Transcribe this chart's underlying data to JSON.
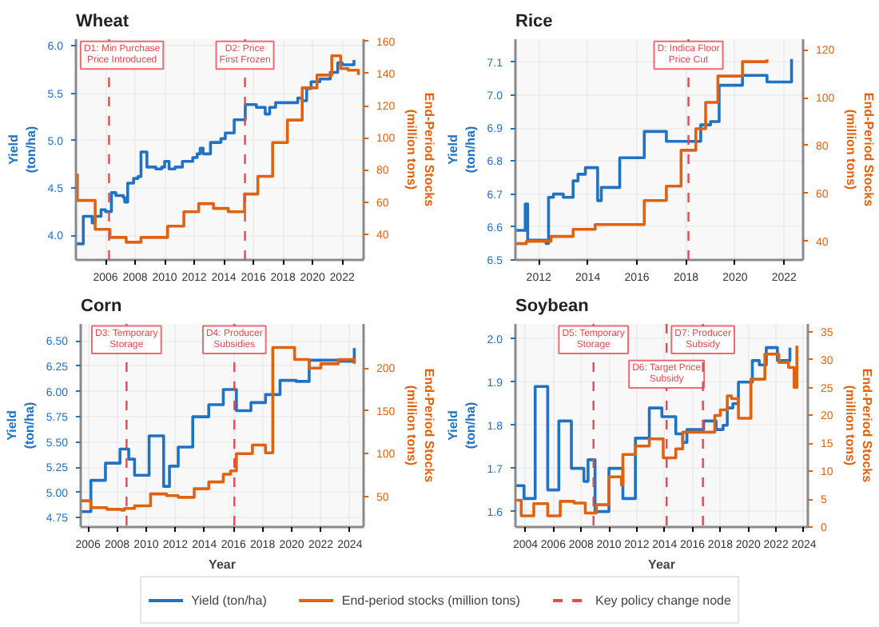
{
  "chart_data": [
    {
      "type": "step",
      "title": "Wheat",
      "ylabel": "Yield\n(ton/ha)",
      "y2label": "End-Period Stocks\n(million tons)",
      "legend": "bottom",
      "annotations": [
        "Key policy change node"
      ],
      "grid": true,
      "xlim": [
        2004.0,
        2023.45
      ],
      "ylim": [
        3.74,
        6.07
      ],
      "y2lim": [
        24,
        161.3
      ],
      "xticks": [
        2006,
        2008,
        2010,
        2012,
        2014,
        2016,
        2018,
        2020,
        2022
      ],
      "yticks": [
        {
          "value": 4,
          "label": "4.0"
        },
        4.5,
        {
          "value": 5,
          "label": "5.0"
        },
        5.5,
        {
          "value": 6,
          "label": "6.0"
        }
      ],
      "y2ticks": [
        40,
        60,
        80,
        100,
        120,
        140,
        160
      ],
      "series": [
        {
          "name": "Yield (ton/ha)",
          "color": "#1f72c4",
          "x": [
            2004.0,
            2004.5,
            2005.1,
            2005.3,
            2005.7,
            2006.0,
            2006.4,
            2006.7,
            2007.2,
            2007.3,
            2007.5,
            2007.9,
            2008.2,
            2008.4,
            2008.8,
            2009.4,
            2009.8,
            2010.0,
            2010.3,
            2010.7,
            2011.2,
            2011.9,
            2012.2,
            2012.4,
            2012.6,
            2013.1,
            2013.8,
            2014.1,
            2014.4,
            2014.7,
            2015.45,
            2016.2,
            2016.8,
            2017.1,
            2017.5,
            2019.0,
            2019.3,
            2019.6,
            2019.9,
            2020.5,
            2021.2,
            2021.7,
            2022.0,
            2022.8
          ],
          "values": [
            3.91,
            4.2,
            4.13,
            4.2,
            4.27,
            4.25,
            4.45,
            4.42,
            4.4,
            4.35,
            4.55,
            4.6,
            4.62,
            4.88,
            4.72,
            4.7,
            4.72,
            4.78,
            4.7,
            4.72,
            4.78,
            4.82,
            4.86,
            4.92,
            4.86,
            4.98,
            5.02,
            5.08,
            5.08,
            5.22,
            5.38,
            5.35,
            5.28,
            5.35,
            5.4,
            5.45,
            5.42,
            5.55,
            5.62,
            5.65,
            5.72,
            5.82,
            5.8,
            5.85
          ]
        },
        {
          "name": "End-period stocks (million tons)",
          "color": "#e0620f",
          "axis": "y2",
          "x": [
            2004.0,
            2004.1,
            2005.3,
            2006.3,
            2007.4,
            2008.4,
            2010.2,
            2011.3,
            2012.3,
            2013.3,
            2014.3,
            2015.4,
            2016.3,
            2017.3,
            2018.3,
            2019.3,
            2020.3,
            2021.3,
            2021.9,
            2022.4,
            2023.1
          ],
          "values": [
            77,
            61,
            43,
            38,
            35,
            38,
            45,
            54,
            59,
            56,
            54,
            65,
            76,
            97,
            111,
            131,
            139,
            151,
            143,
            142,
            139
          ]
        }
      ],
      "ref_lines": [
        {
          "axis": "x",
          "value": 2006.24,
          "label": "D1: Min Purchase\nPrice Introduced",
          "color": "#e8474f",
          "line_style": "dashed"
        },
        {
          "axis": "x",
          "value": 2015.43,
          "label": "D2: Price\nFirst Frozen",
          "color": "#e8474f",
          "line_style": "dashed"
        }
      ]
    },
    {
      "type": "step",
      "title": "Rice",
      "ylabel": "Yield\n(ton/ha)",
      "y2label": "End-Period Stocks\n(million tons)",
      "grid": true,
      "xlim": [
        2011.05,
        2022.77
      ],
      "ylim": [
        6.5,
        7.17
      ],
      "y2lim": [
        32.2,
        124.4
      ],
      "xticks": [
        2012,
        2014,
        2016,
        2018,
        2020,
        2022
      ],
      "yticks": [
        6.5,
        6.6,
        6.7,
        6.8,
        6.9,
        {
          "value": 7,
          "label": "7.0"
        },
        7.1
      ],
      "y2ticks": [
        40,
        60,
        80,
        100,
        120
      ],
      "series": [
        {
          "color": "#1f72c4",
          "x": [
            2011.05,
            2011.45,
            2011.55,
            2012.3,
            2012.4,
            2012.6,
            2013.0,
            2013.4,
            2013.6,
            2013.9,
            2014.4,
            2014.55,
            2015.3,
            2016.3,
            2017.2,
            2018.6,
            2019.0,
            2019.35,
            2020.3,
            2021.3,
            2022.3
          ],
          "values": [
            6.59,
            6.67,
            6.56,
            6.55,
            6.69,
            6.7,
            6.69,
            6.74,
            6.76,
            6.78,
            6.68,
            6.72,
            6.81,
            6.89,
            6.86,
            6.91,
            6.92,
            7.03,
            7.06,
            7.04,
            7.11
          ]
        },
        {
          "color": "#e0620f",
          "axis": "y2",
          "x": [
            2011.05,
            2011.5,
            2012.5,
            2013.4,
            2014.3,
            2016.3,
            2017.2,
            2017.8,
            2018.4,
            2018.8,
            2019.3,
            2020.3,
            2021.3
          ],
          "values": [
            39,
            40,
            42,
            45,
            47,
            57,
            63,
            78,
            87,
            98,
            109,
            115,
            116
          ]
        }
      ],
      "ref_lines": [
        {
          "axis": "x",
          "value": 2018.1,
          "label": "D: Indica Floor\nPrice Cut",
          "color": "#e8474f",
          "line_style": "dashed"
        }
      ]
    },
    {
      "type": "step",
      "title": "Corn",
      "xlabel": "Year",
      "ylabel": "Yield\n(ton/ha)",
      "y2label": "End-Period Stocks\n(million tons)",
      "grid": true,
      "xlim": [
        2005.5,
        2024.94
      ],
      "ylim": [
        4.657,
        6.67
      ],
      "y2lim": [
        14.3,
        251.6
      ],
      "xticks": [
        2006,
        2008,
        2010,
        2012,
        2014,
        2016,
        2018,
        2020,
        2022,
        2024
      ],
      "yticks": [
        4.75,
        {
          "value": 5,
          "label": "5.00"
        },
        5.25,
        {
          "value": 5.5,
          "label": "5.50"
        },
        5.75,
        {
          "value": 6,
          "label": "6.00"
        },
        6.25,
        {
          "value": 6.5,
          "label": "6.50"
        }
      ],
      "y2ticks": [
        50,
        100,
        150,
        200
      ],
      "series": [
        {
          "color": "#1f72c4",
          "x": [
            2005.5,
            2006.2,
            2007.2,
            2008.2,
            2008.8,
            2009.2,
            2010.2,
            2011.2,
            2011.6,
            2012.2,
            2013.2,
            2014.3,
            2015.3,
            2016.2,
            2017.2,
            2018.2,
            2019.2,
            2020.3,
            2021.2,
            2023.2,
            2024.3
          ],
          "values": [
            4.81,
            5.12,
            5.29,
            5.43,
            5.33,
            5.17,
            5.56,
            5.06,
            5.26,
            5.45,
            5.75,
            5.87,
            6.02,
            5.81,
            5.89,
            5.97,
            6.11,
            6.1,
            6.31,
            6.3,
            6.43
          ]
        },
        {
          "color": "#e0620f",
          "axis": "y2",
          "x": [
            2005.5,
            2006.2,
            2007.3,
            2008.3,
            2008.5,
            2009.2,
            2010.3,
            2011.4,
            2012.2,
            2013.3,
            2014.3,
            2015.3,
            2015.8,
            2016.2,
            2017.3,
            2018.2,
            2018.7,
            2020.2,
            2021.2,
            2022.0,
            2023.2,
            2024.3
          ],
          "values": [
            45,
            37,
            35,
            34,
            36,
            39,
            53,
            51,
            49,
            59,
            67,
            76,
            80,
            100,
            110,
            101,
            224,
            210,
            200,
            205,
            210,
            205
          ]
        }
      ],
      "ref_lines": [
        {
          "axis": "x",
          "value": 2008.65,
          "label": "D3: Temporary\nStorage",
          "color": "#e8474f",
          "line_style": "dashed"
        },
        {
          "axis": "x",
          "value": 2016.06,
          "label": "D4: Producer\nSubsidies",
          "color": "#e8474f",
          "line_style": "dashed"
        }
      ]
    },
    {
      "type": "step",
      "title": "Soybean",
      "xlabel": "Year",
      "ylabel": "Yield\n(ton/ha)",
      "y2label": "End-Period Stocks\n(million tons)",
      "grid": true,
      "xlim": [
        2003.28,
        2024.29
      ],
      "ylim": [
        1.564,
        2.035
      ],
      "y2lim": [
        0,
        36.4
      ],
      "xticks": [
        2004,
        2006,
        2008,
        2010,
        2012,
        2014,
        2016,
        2018,
        2020,
        2022,
        2024
      ],
      "yticks": [
        1.6,
        1.7,
        1.8,
        1.9,
        {
          "value": 2,
          "label": "2.0"
        }
      ],
      "y2ticks": [
        0,
        5,
        10,
        15,
        20,
        25,
        30,
        35
      ],
      "series": [
        {
          "color": "#1f72c4",
          "x": [
            2003.28,
            2003.9,
            2004.7,
            2005.6,
            2006.4,
            2007.3,
            2008.2,
            2008.5,
            2009.0,
            2010.0,
            2011.0,
            2011.9,
            2012.9,
            2013.8,
            2014.8,
            2015.3,
            2015.6,
            2016.8,
            2017.7,
            2018.2,
            2018.5,
            2018.9,
            2019.3,
            2020.3,
            2020.8,
            2021.3,
            2022.1,
            2022.6,
            2023.0
          ],
          "values": [
            1.66,
            1.63,
            1.89,
            1.65,
            1.81,
            1.7,
            1.67,
            1.72,
            1.6,
            1.7,
            1.63,
            1.77,
            1.84,
            1.82,
            1.78,
            1.76,
            1.79,
            1.81,
            1.79,
            1.8,
            1.84,
            1.85,
            1.9,
            1.95,
            1.94,
            1.98,
            1.95,
            1.95,
            1.98
          ]
        },
        {
          "color": "#e0620f",
          "axis": "y2",
          "x": [
            2003.28,
            2003.7,
            2004.6,
            2005.6,
            2006.5,
            2007.5,
            2008.3,
            2009.1,
            2010.0,
            2010.9,
            2011.0,
            2011.9,
            2012.9,
            2013.9,
            2014.8,
            2015.3,
            2016.8,
            2017.6,
            2018.0,
            2018.5,
            2018.8,
            2019.3,
            2020.2,
            2021.2,
            2022.2,
            2022.9,
            2023.3,
            2023.5
          ],
          "values": [
            4.8,
            2,
            4.2,
            2,
            4.6,
            4.3,
            2.5,
            4,
            9,
            7.5,
            13,
            14.5,
            15.8,
            12.4,
            14,
            17,
            17,
            20,
            21,
            23.5,
            23,
            19.5,
            26.5,
            31,
            29.5,
            28.6,
            25,
            32.5
          ]
        }
      ],
      "ref_lines": [
        {
          "axis": "x",
          "value": 2008.89,
          "label": "D5: Temporary\nStorage",
          "color": "#e8474f",
          "line_style": "dashed"
        },
        {
          "axis": "x",
          "value": 2014.14,
          "label": "D6: Target Price\nSubsidy",
          "color": "#e8474f",
          "line_style": "dashed"
        },
        {
          "axis": "x",
          "value": 2016.75,
          "label": "D7: Producer\nSubsidy",
          "color": "#e8474f",
          "line_style": "dashed"
        }
      ]
    }
  ]
}
